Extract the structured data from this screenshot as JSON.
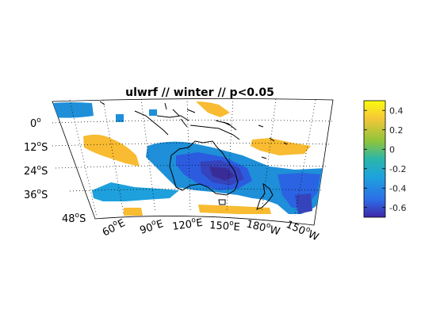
{
  "title": "ulwrf // winter // p<0.05",
  "lat_labels": [
    "0",
    "12",
    "24",
    "36",
    "48"
  ],
  "lat_hemi": [
    "",
    "S",
    "S",
    "S",
    "S"
  ],
  "lon_labels": [
    "60",
    "90",
    "120",
    "150",
    "180",
    "150"
  ],
  "lon_hemi": [
    "E",
    "E",
    "E",
    "E",
    "W",
    "W"
  ],
  "degree_symbol": "o",
  "colorbar": {
    "ticks": [
      0.4,
      0.2,
      0,
      -0.2,
      -0.4,
      -0.6
    ],
    "tick_labels": [
      "0.4",
      "0.2",
      "0",
      "-0.2",
      "-0.4",
      "-0.6"
    ],
    "range": [
      -0.7,
      0.5
    ],
    "colors": [
      "#3e26a8",
      "#2c6ee6",
      "#1ea3dd",
      "#2bb6a9",
      "#8cc43d",
      "#f6c738",
      "#f9fb0e"
    ]
  },
  "map": {
    "projection": "curved-lat-lon",
    "lon_range": [
      40,
      220
    ],
    "lat_range": [
      -50,
      8
    ],
    "grid": "dotted",
    "coastlines": "black"
  }
}
